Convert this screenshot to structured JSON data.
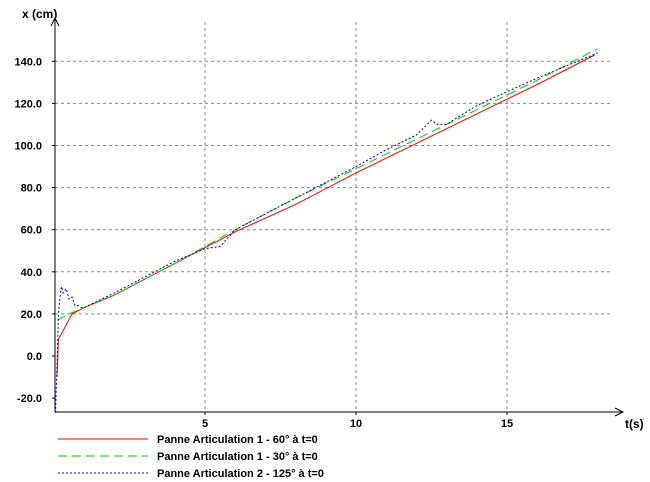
{
  "chart_data": {
    "type": "line",
    "xlabel": "t(s)",
    "ylabel": "x (cm)",
    "xlim": [
      0,
      18.8
    ],
    "ylim": [
      -26,
      160
    ],
    "x_ticks": [
      5,
      10,
      15
    ],
    "y_ticks": [
      -20,
      0,
      20,
      40,
      60,
      80,
      100,
      120,
      140
    ],
    "y_tick_labels": [
      "-20.0",
      "0.0",
      "20.0",
      "40.0",
      "60.0",
      "80.0",
      "100.0",
      "120.0",
      "140.0"
    ],
    "grid": true,
    "legend_position": "bottom",
    "series": [
      {
        "name": "Panne Articulation 1 - 60° à t=0",
        "color": "#ff0000",
        "dash": "solid",
        "x": [
          0.1,
          0.15,
          0.3,
          0.6,
          1.0,
          2,
          4,
          6,
          8,
          10,
          12,
          14,
          16,
          17.9
        ],
        "y": [
          -10,
          8,
          12,
          20,
          23,
          29,
          44,
          59,
          72,
          87,
          101,
          115,
          129,
          143
        ]
      },
      {
        "name": "Panne Articulation 1 - 30° à t=0",
        "color": "#00cc00",
        "dash": "dashed",
        "x": [
          0.1,
          0.5,
          1.0,
          2,
          4,
          6,
          8,
          10,
          12,
          14,
          16,
          18.0
        ],
        "y": [
          17,
          20,
          23,
          29,
          44,
          60,
          75,
          89,
          103,
          117,
          131,
          146
        ]
      },
      {
        "name": "Panne Articulation 2 - 125° à t=0",
        "color": "#0000cc",
        "dash": "dotted",
        "x": [
          0.05,
          0.1,
          0.15,
          0.2,
          0.25,
          0.3,
          0.4,
          0.5,
          0.6,
          0.7,
          0.8,
          0.9,
          1.0,
          2,
          4,
          4.5,
          5,
          5.5,
          6,
          8,
          10,
          11,
          12,
          12.5,
          12.7,
          13,
          14,
          16,
          18.0
        ],
        "y": [
          -27,
          -5,
          20,
          28,
          33,
          30,
          32,
          27,
          28,
          24,
          24,
          23,
          23,
          30,
          45,
          48,
          51,
          52,
          60,
          75,
          90,
          98,
          105,
          112,
          110,
          110,
          119,
          132,
          144
        ]
      }
    ]
  }
}
